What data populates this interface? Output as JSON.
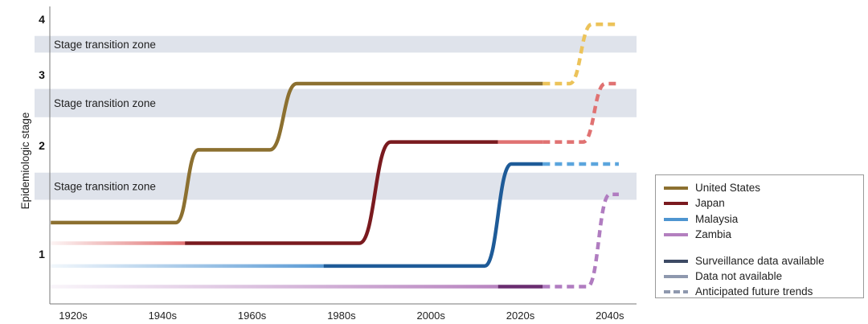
{
  "chart_data": {
    "type": "line",
    "ylabel": "Epidemiologic stage",
    "xlabel": "",
    "xlim": [
      1915,
      2042
    ],
    "x_ticks": [
      {
        "value": 1920,
        "label": "1920s"
      },
      {
        "value": 1940,
        "label": "1940s"
      },
      {
        "value": 1960,
        "label": "1960s"
      },
      {
        "value": 1980,
        "label": "1980s"
      },
      {
        "value": 2000,
        "label": "2000s"
      },
      {
        "value": 2020,
        "label": "2020s"
      },
      {
        "value": 2040,
        "label": "2040s"
      }
    ],
    "y_ticks": [
      {
        "value": 1,
        "label": "1"
      },
      {
        "value": 2,
        "label": "2"
      },
      {
        "value": 3,
        "label": "3"
      },
      {
        "value": 4,
        "label": "4"
      }
    ],
    "zones": [
      {
        "label": "Stage transition zone",
        "from": 3.4,
        "to": 3.7
      },
      {
        "label": "Stage transition zone",
        "from": 2.4,
        "to": 2.8
      },
      {
        "label": "Stage transition zone",
        "from": 1.5,
        "to": 1.75
      }
    ],
    "series": [
      {
        "name": "United States",
        "color": "#8c7030",
        "light": "#8c7030",
        "future": "#ecc35a",
        "segments": [
          {
            "style": "dark",
            "points": [
              [
                1915,
                1.29
              ],
              [
                1943,
                1.29
              ],
              [
                1948,
                1.96
              ],
              [
                1964,
                1.96
              ],
              [
                1970,
                2.875
              ],
              [
                2025,
                2.875
              ]
            ]
          },
          {
            "style": "dashed",
            "points": [
              [
                2025,
                2.875
              ],
              [
                2031,
                2.875
              ],
              [
                2036,
                3.91
              ],
              [
                2042,
                3.91
              ]
            ]
          }
        ]
      },
      {
        "name": "Japan",
        "color": "#7a1a1f",
        "light": "#e07272",
        "future": "#e07272",
        "segments": [
          {
            "style": "faded",
            "points": [
              [
                1915,
                1.1
              ],
              [
                1945,
                1.1
              ]
            ]
          },
          {
            "style": "dark",
            "points": [
              [
                1945,
                1.1
              ],
              [
                1984,
                1.1
              ],
              [
                1991,
                2.05
              ],
              [
                2015,
                2.05
              ]
            ]
          },
          {
            "style": "light",
            "points": [
              [
                2015,
                2.05
              ],
              [
                2025,
                2.05
              ]
            ]
          },
          {
            "style": "dashed",
            "points": [
              [
                2025,
                2.05
              ],
              [
                2034,
                2.05
              ],
              [
                2039,
                2.875
              ],
              [
                2042,
                2.875
              ]
            ]
          }
        ]
      },
      {
        "name": "Malaysia",
        "color": "#1e5b98",
        "light": "#5b9bd5",
        "future": "#5ba5dd",
        "segments": [
          {
            "style": "faded",
            "points": [
              [
                1915,
                0.89
              ],
              [
                1976,
                0.89
              ]
            ]
          },
          {
            "style": "dark",
            "points": [
              [
                1976,
                0.89
              ],
              [
                2012,
                0.89
              ],
              [
                2018,
                1.83
              ],
              [
                2025,
                1.83
              ]
            ]
          },
          {
            "style": "dashed",
            "points": [
              [
                2025,
                1.83
              ],
              [
                2042,
                1.83
              ]
            ]
          }
        ]
      },
      {
        "name": "Zambia",
        "color": "#6a2d70",
        "light": "#b884c0",
        "future": "#b07cc0",
        "segments": [
          {
            "style": "faded",
            "points": [
              [
                1915,
                0.7
              ],
              [
                2015,
                0.7
              ]
            ]
          },
          {
            "style": "dark",
            "points": [
              [
                2015,
                0.7
              ],
              [
                2025,
                0.7
              ]
            ]
          },
          {
            "style": "dashed",
            "points": [
              [
                2025,
                0.7
              ],
              [
                2035,
                0.7
              ],
              [
                2040,
                1.55
              ],
              [
                2042,
                1.55
              ]
            ]
          }
        ]
      }
    ]
  },
  "legend": {
    "countries": [
      "United States",
      "Japan",
      "Malaysia",
      "Zambia"
    ],
    "styles": [
      "Surveillance data available",
      "Data not available",
      "Anticipated future trends"
    ]
  }
}
